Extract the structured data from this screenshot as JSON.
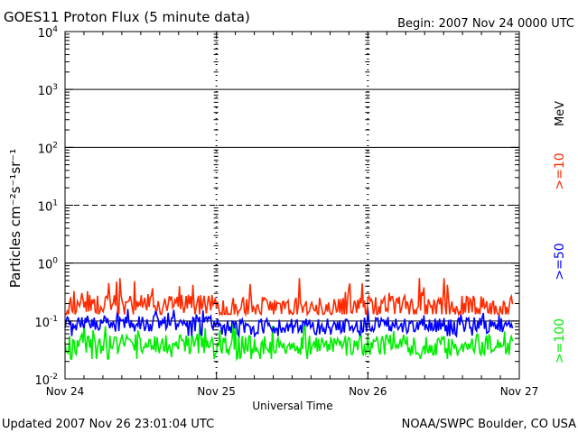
{
  "chart_data": {
    "type": "line",
    "title": "GOES11 Proton Flux (5 minute data)",
    "begin_label": "Begin: 2007 Nov 24 0000 UTC",
    "xlabel": "Universal Time",
    "ylabel": "Particles cm⁻²s⁻¹sr⁻¹",
    "units_label": "MeV",
    "y_scale": "log",
    "ylim": [
      0.01,
      10000
    ],
    "xlim": [
      "2007-11-24T00:00Z",
      "2007-11-27T00:00Z"
    ],
    "x_tick_labels": [
      "Nov 24",
      "Nov 25",
      "Nov 26",
      "Nov 27"
    ],
    "y_tick_labels": [
      {
        "base": "10",
        "exp": "-2"
      },
      {
        "base": "10",
        "exp": "-1"
      },
      {
        "base": "10",
        "exp": "0"
      },
      {
        "base": "10",
        "exp": "1"
      },
      {
        "base": "10",
        "exp": "2"
      },
      {
        "base": "10",
        "exp": "3"
      },
      {
        "base": "10",
        "exp": "4"
      }
    ],
    "thresholds": [
      {
        "value": 10,
        "style": "dashed"
      },
      {
        "value": 1,
        "style": "solid"
      },
      {
        "value": 100,
        "style": "solid"
      },
      {
        "value": 1000,
        "style": "solid"
      },
      {
        "value": 0.1,
        "style": "solid"
      }
    ],
    "series": [
      {
        "name": ">=10",
        "color": "#ff2a00",
        "typical": 0.18,
        "low": 0.13,
        "high": 0.55,
        "daily_mean": [
          0.19,
          0.17,
          0.18
        ]
      },
      {
        "name": ">=50",
        "color": "#0000ff",
        "typical": 0.085,
        "low": 0.055,
        "high": 0.16,
        "daily_mean": [
          0.09,
          0.08,
          0.085
        ]
      },
      {
        "name": ">=100",
        "color": "#00ee00",
        "typical": 0.038,
        "low": 0.022,
        "high": 0.09,
        "daily_mean": [
          0.04,
          0.037,
          0.038
        ]
      }
    ]
  },
  "footer": {
    "updated": "Updated 2007 Nov 26 23:01:04 UTC",
    "credit": "NOAA/SWPC Boulder, CO USA"
  }
}
